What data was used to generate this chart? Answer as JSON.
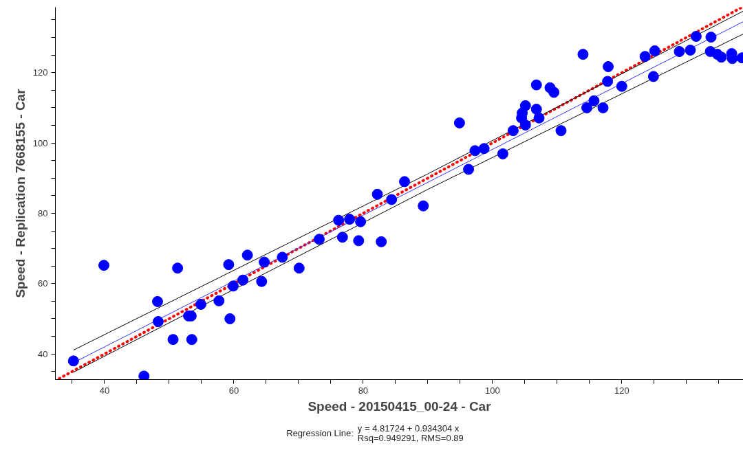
{
  "chart_data": {
    "type": "scatter",
    "xlabel": "Speed - 20150415_00-24 - Car",
    "ylabel": "Speed - Replication 7668155 - Car",
    "annotations": [
      "Regression Line:",
      "y = 4.81724 + 0.934304 x",
      "Rsq=0.949291, RMS=0.89"
    ],
    "xlim": [
      32.4,
      138.8
    ],
    "ylim": [
      32.7,
      138.6
    ],
    "xticks": [
      {
        "value": 35,
        "label": null
      },
      40,
      {
        "value": 45,
        "label": null
      },
      {
        "value": 50,
        "label": null
      },
      {
        "value": 55,
        "label": null
      },
      60,
      {
        "value": 65,
        "label": null
      },
      {
        "value": 70,
        "label": null
      },
      {
        "value": 75,
        "label": null
      },
      80,
      {
        "value": 85,
        "label": null
      },
      {
        "value": 90,
        "label": null
      },
      {
        "value": 95,
        "label": null
      },
      100,
      {
        "value": 105,
        "label": null
      },
      {
        "value": 110,
        "label": null
      },
      {
        "value": 115,
        "label": null
      },
      120,
      {
        "value": 125,
        "label": null
      },
      {
        "value": 130,
        "label": null
      },
      {
        "value": 135,
        "label": null
      }
    ],
    "yticks": [
      {
        "value": 35,
        "label": null
      },
      40,
      {
        "value": 45,
        "label": null
      },
      {
        "value": 50,
        "label": null
      },
      {
        "value": 55,
        "label": null
      },
      60,
      {
        "value": 65,
        "label": null
      },
      {
        "value": 70,
        "label": null
      },
      {
        "value": 75,
        "label": null
      },
      80,
      {
        "value": 85,
        "label": null
      },
      {
        "value": 90,
        "label": null
      },
      {
        "value": 95,
        "label": null
      },
      100,
      {
        "value": 105,
        "label": null
      },
      {
        "value": 110,
        "label": null
      },
      {
        "value": 115,
        "label": null
      },
      120,
      {
        "value": 125,
        "label": null
      },
      {
        "value": 130,
        "label": null
      },
      {
        "value": 135,
        "label": null
      }
    ],
    "grid": false,
    "marker": "circle",
    "series": [
      {
        "type": "line",
        "marker": "none",
        "color": "#ff0000",
        "line_style": "dotted",
        "x": [
          33,
          138.5
        ],
        "values": [
          33,
          138.5
        ]
      },
      {
        "type": "line",
        "marker": "none",
        "color": "#000000",
        "line_style": "solid",
        "x": [
          35.2,
          90,
          138.8
        ],
        "values": [
          41.1,
          91.2,
          137.5
        ]
      },
      {
        "type": "line",
        "marker": "none",
        "color": "#000000",
        "line_style": "solid",
        "x": [
          35.2,
          90,
          138.8
        ],
        "values": [
          34.8,
          86.8,
          131
        ]
      },
      {
        "type": "line",
        "marker": "none",
        "color": "#3333ff",
        "line_style": "solid",
        "x": [
          35.2,
          138.8
        ],
        "values": [
          37.5,
          134.5
        ]
      },
      {
        "color": "#0000ff",
        "x": [
          35.2,
          39.9,
          46.1,
          48.2,
          48.3,
          50.6,
          51.3,
          53.0,
          53.4,
          53.5,
          54.9,
          57.7,
          59.2,
          59.4,
          59.9,
          61.4,
          62.1,
          64.3,
          64.7,
          67.5,
          70.1,
          73.2,
          76.2,
          76.8,
          77.9,
          79.3,
          79.6,
          82.2,
          82.8,
          84.4,
          86.4,
          89.3,
          94.9,
          96.3,
          97.3,
          98.7,
          101.6,
          103.2,
          104.6,
          104.5,
          105.1,
          105.1,
          106.8,
          107.2,
          106.8,
          108.9,
          109.5,
          110.6,
          114.0,
          117.9,
          117.8,
          120.0,
          115.7,
          114.6,
          117.1,
          123.6,
          125.1,
          124.9,
          128.9,
          130.6,
          131.5,
          133.8,
          133.7,
          134.8,
          135.4,
          137.0,
          137.1,
          138.6
        ],
        "values": [
          38.0,
          65.2,
          33.7,
          54.9,
          49.2,
          44.1,
          64.4,
          50.8,
          50.8,
          44.1,
          54.1,
          55.1,
          65.4,
          50.0,
          59.3,
          61.0,
          68.1,
          60.6,
          66.1,
          67.5,
          64.4,
          72.6,
          78.0,
          73.2,
          78.3,
          72.2,
          77.6,
          85.4,
          71.9,
          83.9,
          89.0,
          82.1,
          105.7,
          92.5,
          97.8,
          98.4,
          96.9,
          103.5,
          108.5,
          107.1,
          110.6,
          105.1,
          109.6,
          107.1,
          116.5,
          115.7,
          114.4,
          103.5,
          125.2,
          121.7,
          117.5,
          116.1,
          112.0,
          110.0,
          110.0,
          124.6,
          126.2,
          118.9,
          126.0,
          126.4,
          130.3,
          130.1,
          126.0,
          125.2,
          124.4,
          125.4,
          124.0,
          124.2
        ]
      }
    ]
  }
}
